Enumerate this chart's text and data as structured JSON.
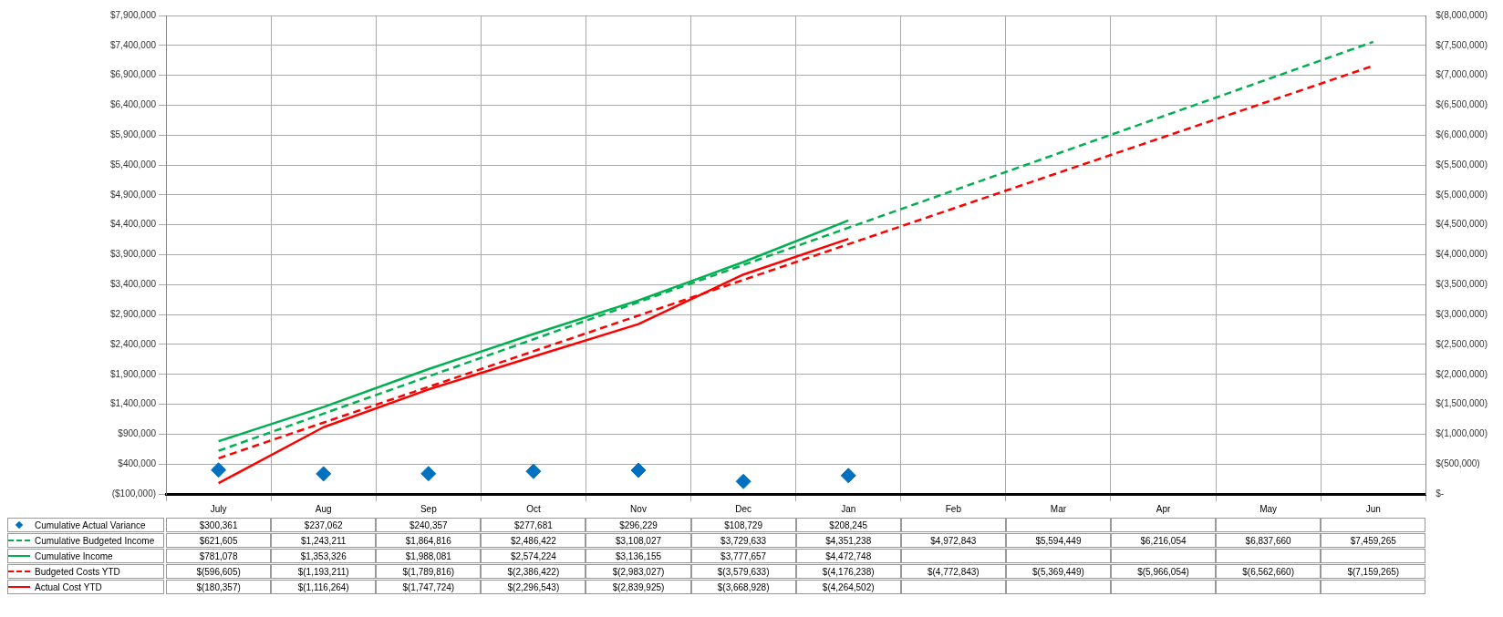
{
  "chart_data": {
    "type": "line",
    "categories": [
      "July",
      "Aug",
      "Sep",
      "Oct",
      "Nov",
      "Dec",
      "Jan",
      "Feb",
      "Mar",
      "Apr",
      "May",
      "Jun"
    ],
    "series": [
      {
        "name": "Cumulative Actual Variance",
        "type": "scatter",
        "marker": "diamond",
        "color": "#0070c0",
        "values": [
          300361,
          237062,
          240357,
          277681,
          296229,
          108729,
          208245,
          null,
          null,
          null,
          null,
          null
        ],
        "value_labels": [
          "$300,361",
          "$237,062",
          "$240,357",
          "$277,681",
          "$296,229",
          "$108,729",
          "$208,245",
          null,
          null,
          null,
          null,
          null
        ]
      },
      {
        "name": "Cumulative Budgeted Income",
        "line_style": "dashed",
        "color": "#00b050",
        "values": [
          621605,
          1243211,
          1864816,
          2486422,
          3108027,
          3729633,
          4351238,
          4972843,
          5594449,
          6216054,
          6837660,
          7459265
        ],
        "value_labels": [
          "$621,605",
          "$1,243,211",
          "$1,864,816",
          "$2,486,422",
          "$3,108,027",
          "$3,729,633",
          "$4,351,238",
          "$4,972,843",
          "$5,594,449",
          "$6,216,054",
          "$6,837,660",
          "$7,459,265"
        ]
      },
      {
        "name": "Cumulative Income",
        "line_style": "solid",
        "color": "#00b050",
        "values": [
          781078,
          1353326,
          1988081,
          2574224,
          3136155,
          3777657,
          4472748,
          null,
          null,
          null,
          null,
          null
        ],
        "value_labels": [
          "$781,078",
          "$1,353,326",
          "$1,988,081",
          "$2,574,224",
          "$3,136,155",
          "$3,777,657",
          "$4,472,748",
          null,
          null,
          null,
          null,
          null
        ]
      },
      {
        "name": "Budgeted Costs YTD",
        "line_style": "dashed",
        "axis": "y2",
        "color": "#ff0000",
        "values": [
          -596605,
          -1193211,
          -1789816,
          -2386422,
          -2983027,
          -3579633,
          -4176238,
          -4772843,
          -5369449,
          -5966054,
          -6562660,
          -7159265
        ],
        "value_labels": [
          "$(596,605)",
          "$(1,193,211)",
          "$(1,789,816)",
          "$(2,386,422)",
          "$(2,983,027)",
          "$(3,579,633)",
          "$(4,176,238)",
          "$(4,772,843)",
          "$(5,369,449)",
          "$(5,966,054)",
          "$(6,562,660)",
          "$(7,159,265)"
        ]
      },
      {
        "name": "Actual Cost YTD",
        "line_style": "solid",
        "axis": "y2",
        "color": "#ff0000",
        "values": [
          -180357,
          -1116264,
          -1747724,
          -2296543,
          -2839925,
          -3668928,
          -4264502,
          null,
          null,
          null,
          null,
          null
        ],
        "value_labels": [
          "$(180,357)",
          "$(1,116,264)",
          "$(1,747,724)",
          "$(2,296,543)",
          "$(2,839,925)",
          "$(3,668,928)",
          "$(4,264,502)",
          null,
          null,
          null,
          null,
          null
        ]
      }
    ],
    "ylim": [
      -100000,
      7900000
    ],
    "yticks": [
      {
        "value": -100000,
        "label": "($100,000)"
      },
      {
        "value": 400000,
        "label": "$400,000"
      },
      {
        "value": 900000,
        "label": "$900,000"
      },
      {
        "value": 1400000,
        "label": "$1,400,000"
      },
      {
        "value": 1900000,
        "label": "$1,900,000"
      },
      {
        "value": 2400000,
        "label": "$2,400,000"
      },
      {
        "value": 2900000,
        "label": "$2,900,000"
      },
      {
        "value": 3400000,
        "label": "$3,400,000"
      },
      {
        "value": 3900000,
        "label": "$3,900,000"
      },
      {
        "value": 4400000,
        "label": "$4,400,000"
      },
      {
        "value": 4900000,
        "label": "$4,900,000"
      },
      {
        "value": 5400000,
        "label": "$5,400,000"
      },
      {
        "value": 5900000,
        "label": "$5,900,000"
      },
      {
        "value": 6400000,
        "label": "$6,400,000"
      },
      {
        "value": 6900000,
        "label": "$6,900,000"
      },
      {
        "value": 7400000,
        "label": "$7,400,000"
      },
      {
        "value": 7900000,
        "label": "$7,900,000"
      }
    ],
    "y2lim": [
      0,
      -8000000
    ],
    "y2ticks": [
      {
        "value": 0,
        "label": "$-"
      },
      {
        "value": -500000,
        "label": "$(500,000)"
      },
      {
        "value": -1000000,
        "label": "$(1,000,000)"
      },
      {
        "value": -1500000,
        "label": "$(1,500,000)"
      },
      {
        "value": -2000000,
        "label": "$(2,000,000)"
      },
      {
        "value": -2500000,
        "label": "$(2,500,000)"
      },
      {
        "value": -3000000,
        "label": "$(3,000,000)"
      },
      {
        "value": -3500000,
        "label": "$(3,500,000)"
      },
      {
        "value": -4000000,
        "label": "$(4,000,000)"
      },
      {
        "value": -4500000,
        "label": "$(4,500,000)"
      },
      {
        "value": -5000000,
        "label": "$(5,000,000)"
      },
      {
        "value": -5500000,
        "label": "$(5,500,000)"
      },
      {
        "value": -6000000,
        "label": "$(6,000,000)"
      },
      {
        "value": -6500000,
        "label": "$(6,500,000)"
      },
      {
        "value": -7000000,
        "label": "$(7,000,000)"
      },
      {
        "value": -7500000,
        "label": "$(7,500,000)"
      },
      {
        "value": -8000000,
        "label": "$(8,000,000)"
      }
    ],
    "grid": true,
    "legend": "bottom"
  }
}
